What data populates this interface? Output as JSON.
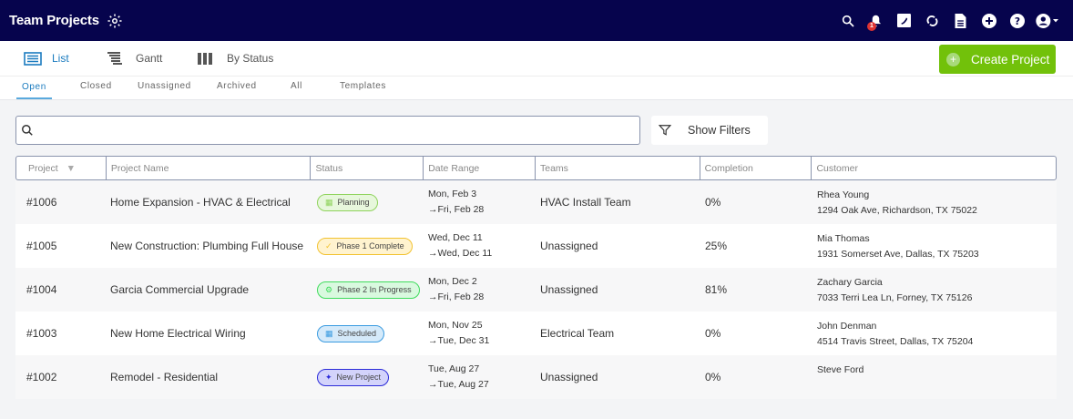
{
  "app": {
    "title": "Team Projects",
    "notification_count": "1"
  },
  "header_icons": [
    "search-icon",
    "bell-icon",
    "phone-icon",
    "sync-icon",
    "document-icon",
    "plus-circle-icon",
    "help-icon",
    "user-icon"
  ],
  "views": [
    {
      "label": "List",
      "icon": "list-icon",
      "active": true
    },
    {
      "label": "Gantt",
      "icon": "gantt-icon"
    },
    {
      "label": "By Status",
      "icon": "columns-icon"
    }
  ],
  "create_button": "Create Project",
  "tabs": [
    "Open",
    "Closed",
    "Unassigned",
    "Archived",
    "All",
    "Templates"
  ],
  "search": {
    "placeholder": "",
    "value": ""
  },
  "filters_button": "Show Filters",
  "columns": [
    "Project",
    "Project Name",
    "Status",
    "Date Range",
    "Teams",
    "Completion",
    "Customer"
  ],
  "rows": [
    {
      "id": "#1006",
      "name": "Home Expansion - HVAC & Electrical",
      "status": "Planning",
      "status_color": "#8fd35c",
      "status_bg": "#e7f7dc",
      "status_icon": "calendar-icon",
      "start": "Mon, Feb 3",
      "end": "→Fri, Feb 28",
      "team": "HVAC Install Team",
      "completion": "0%",
      "customer": "Rhea Young",
      "address": "1294 Oak Ave, Richardson, TX 75022"
    },
    {
      "id": "#1005",
      "name": "New Construction: Plumbing Full House",
      "status": "Phase 1 Complete",
      "status_color": "#f2c230",
      "status_bg": "#fff3cf",
      "status_icon": "check-icon",
      "start": "Wed, Dec 11",
      "end": "→Wed, Dec 11",
      "team": "Unassigned",
      "completion": "25%",
      "customer": "Mia Thomas",
      "address": "1931 Somerset Ave, Dallas, TX 75203"
    },
    {
      "id": "#1004",
      "name": "Garcia Commercial Upgrade",
      "status": "Phase 2 In Progress",
      "status_color": "#3fdc5c",
      "status_bg": "#d9f9df",
      "status_icon": "gears-icon",
      "start": "Mon, Dec 2",
      "end": "→Fri, Feb 28",
      "team": "Unassigned",
      "completion": "81%",
      "customer": "Zachary Garcia",
      "address": "7033 Terri Lea Ln, Forney, TX 75126"
    },
    {
      "id": "#1003",
      "name": "New Home Electrical Wiring",
      "status": "Scheduled",
      "status_color": "#3a9be0",
      "status_bg": "#d5eafa",
      "status_icon": "calendar-icon",
      "start": "Mon, Nov 25",
      "end": "→Tue, Dec 31",
      "team": "Electrical Team",
      "completion": "0%",
      "customer": "John Denman",
      "address": "4514 Travis Street, Dallas, TX 75204"
    },
    {
      "id": "#1002",
      "name": "Remodel - Residential",
      "status": "New Project",
      "status_color": "#2b2bd9",
      "status_bg": "#d3d3fb",
      "status_icon": "sparkle-icon",
      "start": "Tue, Aug 27",
      "end": "→Tue, Aug 27",
      "team": "Unassigned",
      "completion": "0%",
      "customer": "Steve Ford",
      "address": ""
    }
  ]
}
